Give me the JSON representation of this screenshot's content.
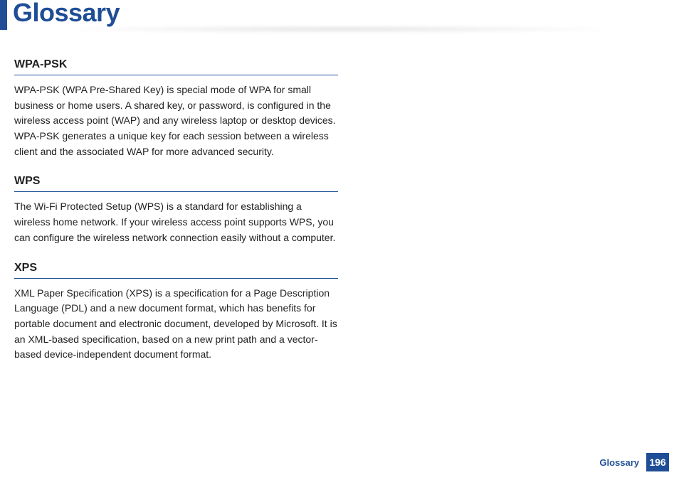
{
  "page": {
    "title": "Glossary",
    "footer_label": "Glossary",
    "page_number": "196"
  },
  "colors": {
    "accent": "#1f4e96",
    "text": "#222222",
    "background": "#ffffff"
  },
  "typography": {
    "title_fontsize": 36,
    "term_title_fontsize": 16,
    "body_fontsize": 14,
    "footer_fontsize": 13
  },
  "terms": [
    {
      "title": "WPA-PSK",
      "body": "WPA-PSK (WPA Pre-Shared Key) is special mode of WPA for small business or home users. A shared key, or password, is configured in the wireless access point (WAP) and any wireless laptop or desktop devices. WPA-PSK generates a unique key for each session between a wireless client and the associated WAP for more advanced security."
    },
    {
      "title": "WPS",
      "body": "The Wi-Fi Protected Setup (WPS) is a standard for establishing a wireless home network. If your wireless access point supports WPS, you can configure the wireless network connection easily without a computer."
    },
    {
      "title": "XPS",
      "body": "XML Paper Specification (XPS) is a specification for a Page Description Language (PDL) and a new document format, which has benefits for portable document and electronic document, developed by Microsoft. It is an XML-based specification, based on a new print path and a vector-based device-independent document format."
    }
  ]
}
